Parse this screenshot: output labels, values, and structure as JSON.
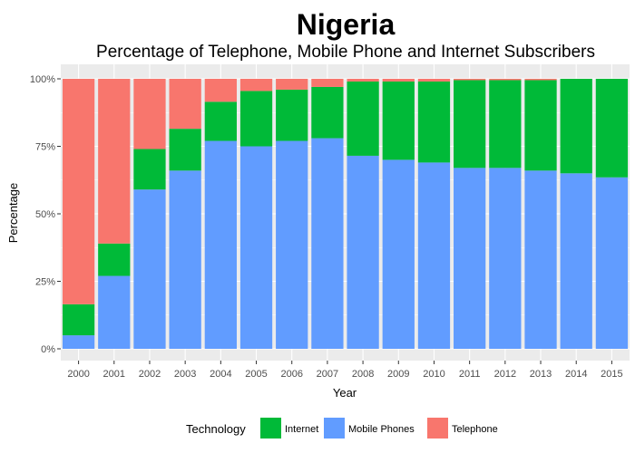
{
  "chart_data": {
    "type": "bar",
    "stacked": true,
    "title": "Nigeria",
    "subtitle": "Percentage of Telephone, Mobile Phone and Internet Subscribers",
    "xlabel": "Year",
    "ylabel": "Percentage",
    "ylim": [
      0,
      100
    ],
    "y_ticks": [
      "0%",
      "25%",
      "50%",
      "75%",
      "100%"
    ],
    "categories": [
      "2000",
      "2001",
      "2002",
      "2003",
      "2004",
      "2005",
      "2006",
      "2007",
      "2008",
      "2009",
      "2010",
      "2011",
      "2012",
      "2013",
      "2014",
      "2015"
    ],
    "series": [
      {
        "name": "Mobile Phones",
        "color": "#619CFF",
        "values": [
          5,
          27,
          59,
          66,
          77,
          75,
          77,
          78,
          71.5,
          70,
          69,
          67,
          67,
          66,
          65,
          63.5
        ]
      },
      {
        "name": "Internet",
        "color": "#00BA38",
        "values": [
          11.5,
          12,
          15,
          15.5,
          14.5,
          20.5,
          19,
          19,
          27.5,
          29,
          30,
          32.5,
          32.5,
          33.5,
          35,
          36.5
        ]
      },
      {
        "name": "Telephone",
        "color": "#F8766D",
        "values": [
          83.5,
          61,
          26,
          18.5,
          8.5,
          4.5,
          4,
          3,
          1,
          1,
          1,
          0.5,
          0.5,
          0.5,
          0,
          0
        ]
      }
    ],
    "grid": true,
    "legend": {
      "title": "Technology",
      "position": "bottom",
      "items": [
        {
          "name": "Internet",
          "color": "#00BA38"
        },
        {
          "name": "Mobile Phones",
          "color": "#619CFF"
        },
        {
          "name": "Telephone",
          "color": "#F8766D"
        }
      ]
    },
    "panel_color": "#EBEBEB",
    "grid_color": "#FFFFFF"
  }
}
